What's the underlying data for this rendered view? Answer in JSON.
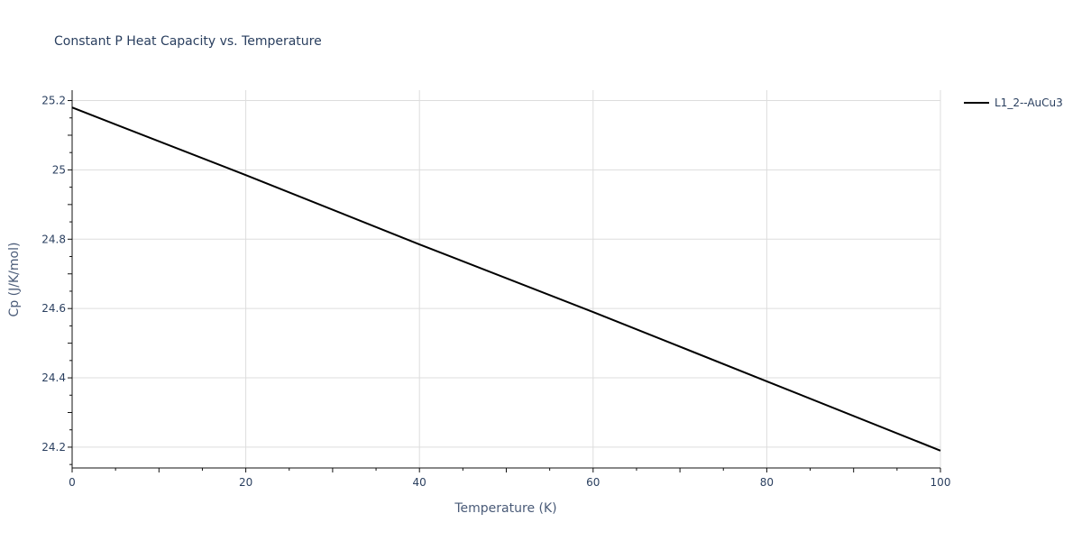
{
  "chart_data": {
    "type": "line",
    "title": "Constant P Heat Capacity vs. Temperature",
    "xlabel": "Temperature (K)",
    "ylabel": "Cp (J/K/mol)",
    "xlim": [
      0,
      100
    ],
    "ylim": [
      24.14,
      25.23
    ],
    "x_ticks": [
      0,
      20,
      40,
      60,
      80,
      100
    ],
    "x_tick_labels": [
      "0",
      "20",
      "40",
      "60",
      "80",
      "100"
    ],
    "y_ticks": [
      24.2,
      24.4,
      24.6,
      24.8,
      25.0,
      25.2
    ],
    "y_tick_labels": [
      "24.2",
      "24.4",
      "24.6",
      "24.8",
      "25",
      "25.2"
    ],
    "grid": true,
    "legend_position": "top-right",
    "series": [
      {
        "name": "L1_2--AuCu3",
        "color": "#000000",
        "x": [
          0,
          20,
          40,
          60,
          80,
          100
        ],
        "y": [
          25.18,
          24.985,
          24.785,
          24.59,
          24.39,
          24.19
        ]
      }
    ]
  }
}
